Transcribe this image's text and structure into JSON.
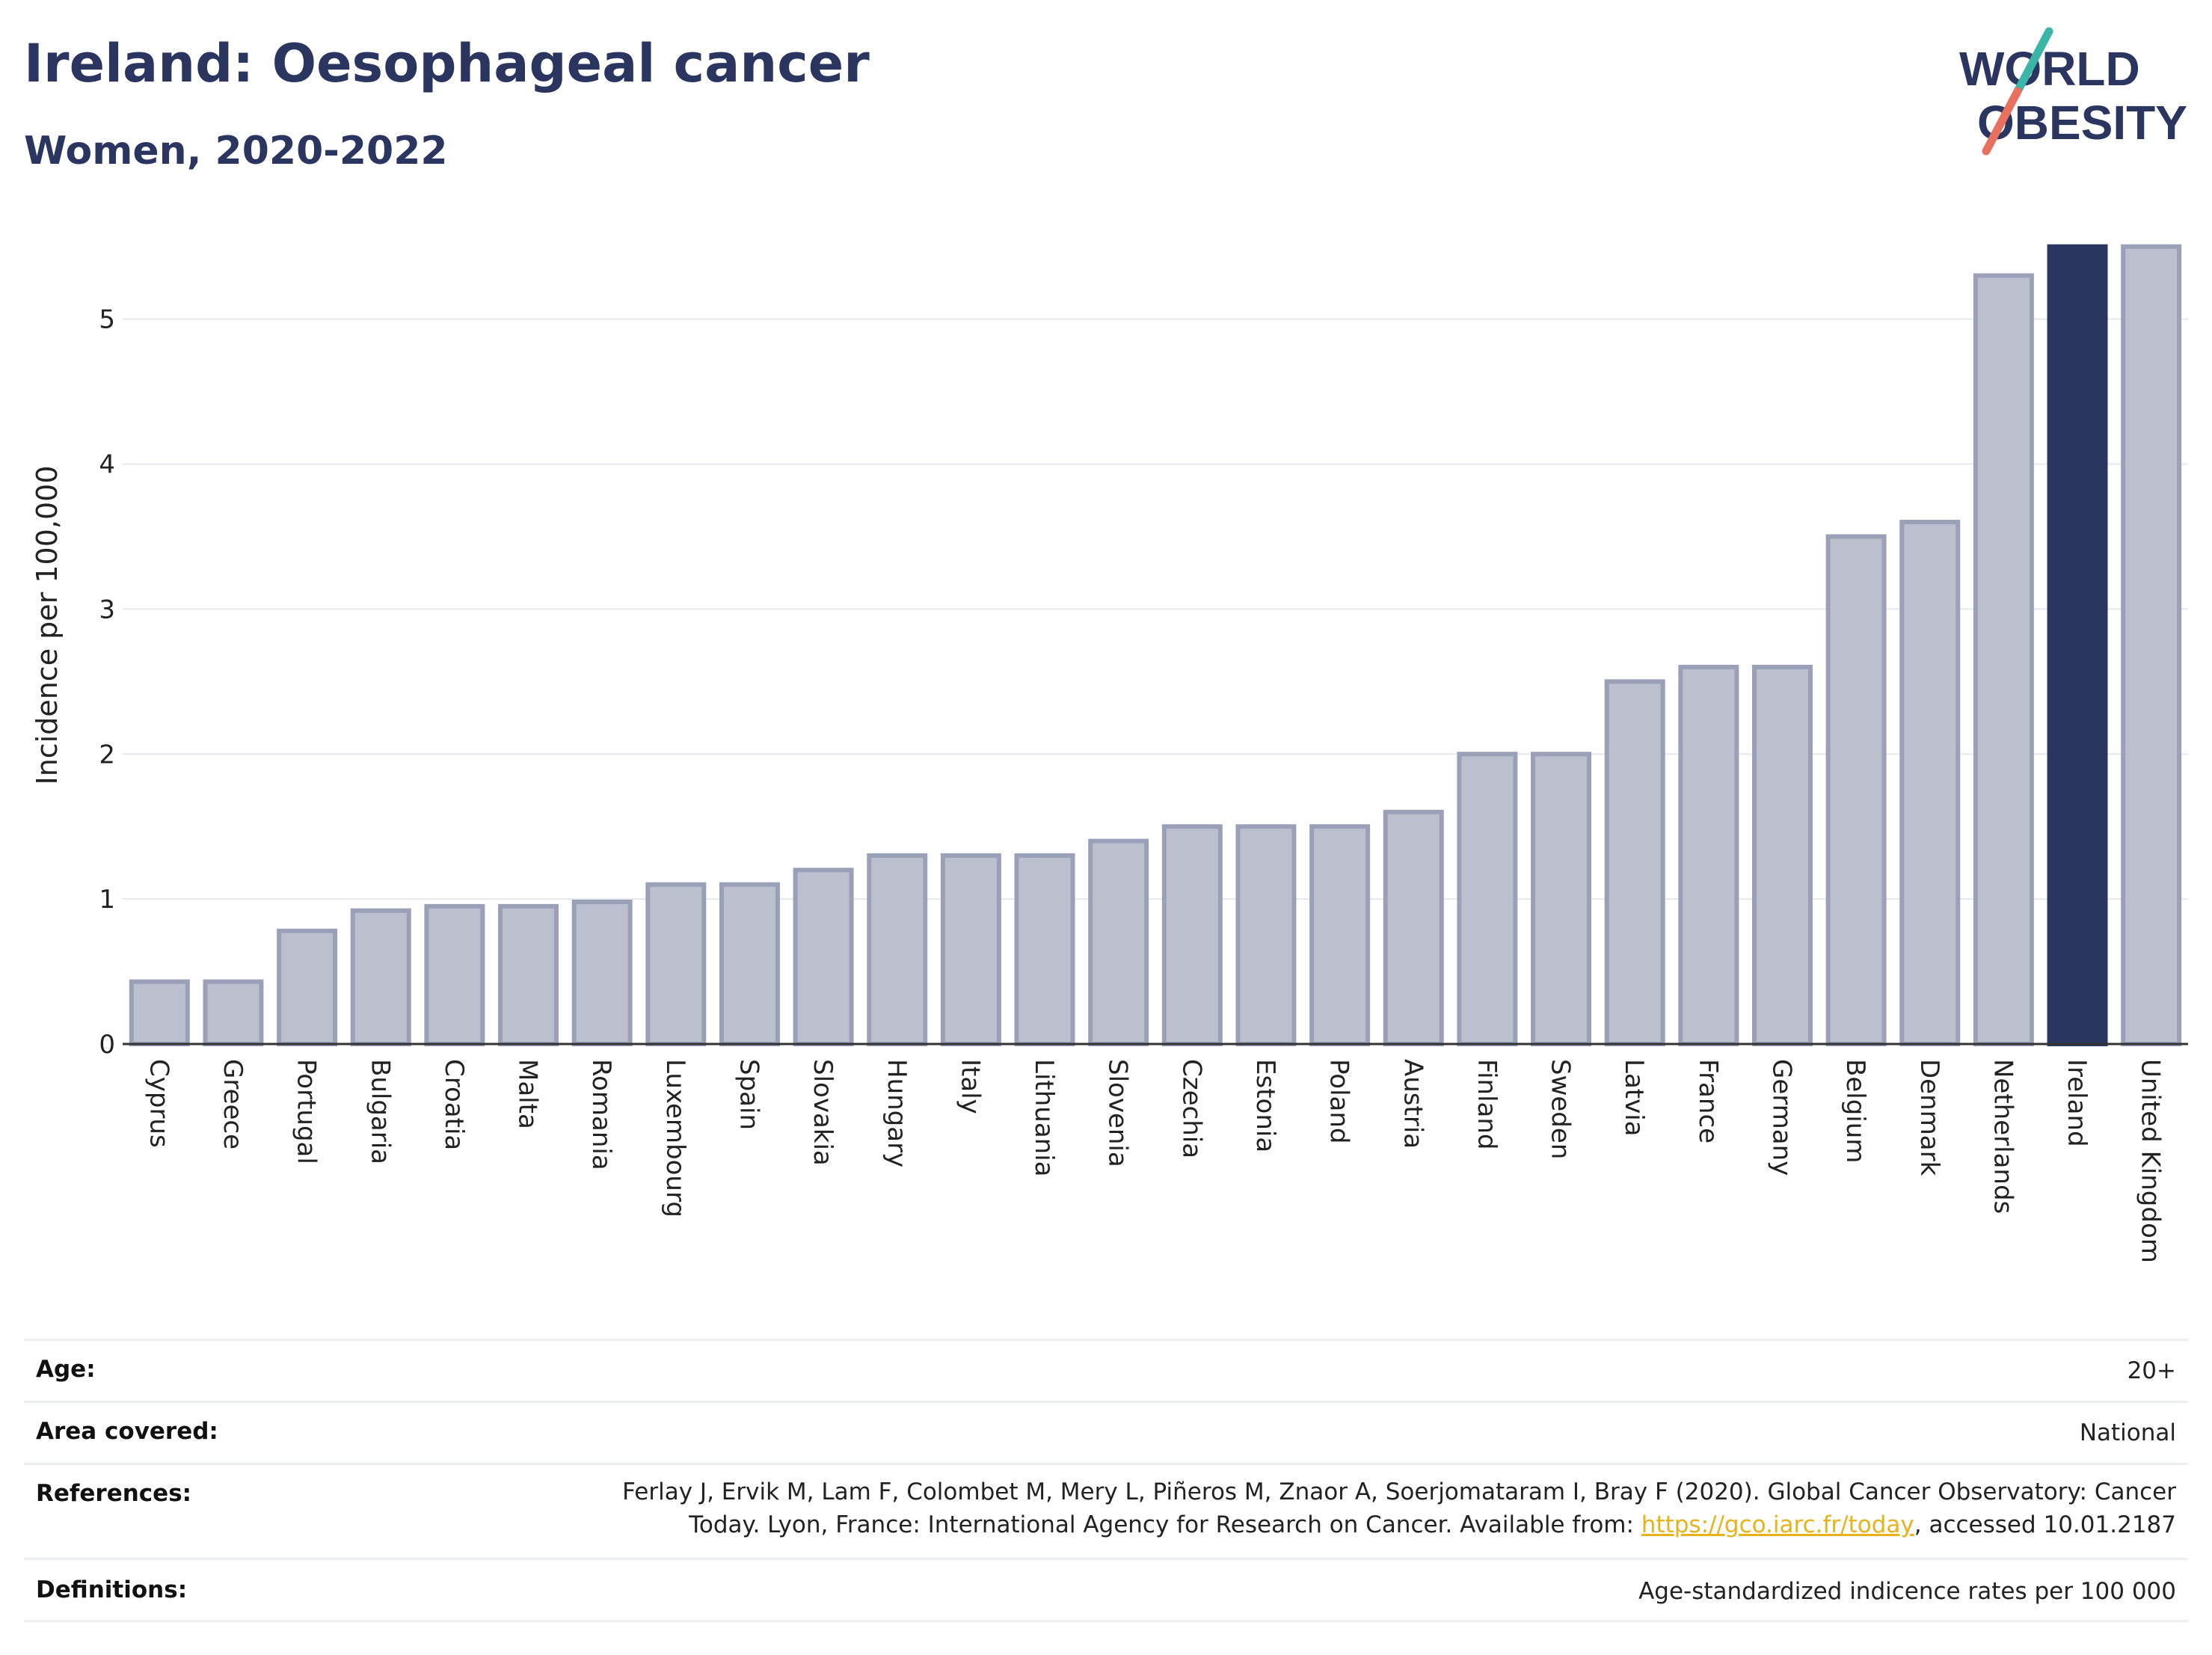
{
  "header": {
    "title": "Ireland: Oesophageal cancer",
    "subtitle": "Women, 2020-2022",
    "logo_line1": "WORLD",
    "logo_line2": "OBESITY"
  },
  "colors": {
    "title": "#2a3560",
    "bar": "#bcc0ce",
    "bar_border": "#9aa0b8",
    "highlight": "#2a3560",
    "link": "#e8b21a",
    "logo_teal": "#3ab5a8",
    "logo_coral": "#e8705e"
  },
  "chart_data": {
    "type": "bar",
    "ylabel": "Incidence per 100,000",
    "xlabel": "",
    "ylim": [
      0,
      5.55
    ],
    "yticks": [
      0,
      1,
      2,
      3,
      4,
      5
    ],
    "grid": true,
    "highlight": "Ireland",
    "categories": [
      "Cyprus",
      "Greece",
      "Portugal",
      "Bulgaria",
      "Croatia",
      "Malta",
      "Romania",
      "Luxembourg",
      "Spain",
      "Slovakia",
      "Hungary",
      "Italy",
      "Lithuania",
      "Slovenia",
      "Czechia",
      "Estonia",
      "Poland",
      "Austria",
      "Finland",
      "Sweden",
      "Latvia",
      "France",
      "Germany",
      "Belgium",
      "Denmark",
      "Netherlands",
      "Ireland",
      "United Kingdom"
    ],
    "values": [
      0.43,
      0.43,
      0.78,
      0.92,
      0.95,
      0.95,
      0.98,
      1.1,
      1.1,
      1.2,
      1.3,
      1.3,
      1.3,
      1.4,
      1.5,
      1.5,
      1.5,
      1.6,
      2.0,
      2.0,
      2.5,
      2.6,
      2.6,
      3.5,
      3.6,
      5.3,
      5.5,
      5.5
    ]
  },
  "meta": {
    "age_label": "Age:",
    "age_value": "20+",
    "area_label": "Area covered:",
    "area_value": "National",
    "references_label": "References:",
    "references_line1": "Ferlay J, Ervik M, Lam F, Colombet M, Mery L, Piñeros M, Znaor A, Soerjomataram I, Bray F (2020). Global Cancer Observatory: Cancer",
    "references_line2_pre": "Today. Lyon, France: International Agency for Research on Cancer. Available from: ",
    "references_link": "https://gco.iarc.fr/today",
    "references_line2_post": ", accessed 10.01.2187",
    "definitions_label": "Definitions:",
    "definitions_value": "Age-standardized indicence rates per 100 000"
  }
}
